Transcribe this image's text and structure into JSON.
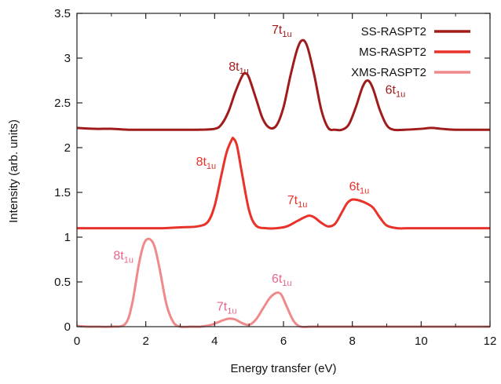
{
  "chart_data": {
    "type": "line",
    "title": "",
    "xlabel": "Energy transfer (eV)",
    "ylabel": "Intensity (arb. units)",
    "xlim": [
      0,
      12
    ],
    "ylim": [
      0,
      3.5
    ],
    "x_ticks": [
      "0",
      "2",
      "4",
      "6",
      "8",
      "10",
      "12"
    ],
    "y_ticks": [
      "0",
      "0.5",
      "1",
      "1.5",
      "2",
      "2.5",
      "3",
      "3.5"
    ],
    "grid": false,
    "legend_position": "top-right",
    "series": [
      {
        "name": "SS-RASPT2",
        "color": "#a01c1c",
        "x": [
          0,
          0.5,
          1,
          1.5,
          2,
          2.5,
          3,
          3.5,
          4,
          4.2,
          4.4,
          4.6,
          4.8,
          4.9,
          5.0,
          5.2,
          5.4,
          5.6,
          5.8,
          6.0,
          6.2,
          6.4,
          6.55,
          6.7,
          6.9,
          7.1,
          7.3,
          7.5,
          7.7,
          7.9,
          8.1,
          8.3,
          8.45,
          8.6,
          8.8,
          9.0,
          9.2,
          9.5,
          10,
          10.3,
          10.6,
          11,
          11.5,
          12
        ],
        "values": [
          2.22,
          2.21,
          2.21,
          2.2,
          2.2,
          2.2,
          2.2,
          2.2,
          2.21,
          2.26,
          2.4,
          2.62,
          2.8,
          2.83,
          2.78,
          2.55,
          2.32,
          2.22,
          2.25,
          2.45,
          2.8,
          3.1,
          3.2,
          3.12,
          2.8,
          2.42,
          2.22,
          2.2,
          2.2,
          2.26,
          2.45,
          2.68,
          2.75,
          2.66,
          2.42,
          2.25,
          2.2,
          2.2,
          2.21,
          2.22,
          2.21,
          2.2,
          2.2,
          2.2
        ]
      },
      {
        "name": "MS-RASPT2",
        "color": "#e8322a",
        "x": [
          0,
          0.5,
          1,
          1.5,
          2,
          2.5,
          3,
          3.5,
          3.8,
          4.0,
          4.2,
          4.35,
          4.5,
          4.55,
          4.65,
          4.8,
          5.0,
          5.2,
          5.5,
          5.8,
          6.1,
          6.4,
          6.6,
          6.75,
          6.9,
          7.1,
          7.3,
          7.5,
          7.7,
          7.85,
          8.0,
          8.2,
          8.4,
          8.6,
          8.8,
          9.0,
          9.3,
          9.6,
          10,
          10.5,
          11,
          11.5,
          12
        ],
        "values": [
          1.1,
          1.1,
          1.1,
          1.1,
          1.1,
          1.1,
          1.11,
          1.12,
          1.17,
          1.35,
          1.7,
          1.95,
          2.09,
          2.1,
          2.02,
          1.7,
          1.3,
          1.13,
          1.1,
          1.1,
          1.12,
          1.18,
          1.22,
          1.24,
          1.22,
          1.16,
          1.12,
          1.15,
          1.28,
          1.38,
          1.42,
          1.41,
          1.38,
          1.33,
          1.22,
          1.13,
          1.1,
          1.1,
          1.1,
          1.1,
          1.1,
          1.1,
          1.1
        ]
      },
      {
        "name": "XMS-RASPT2",
        "color": "#f08a8a",
        "x": [
          0,
          0.3,
          0.6,
          1.0,
          1.4,
          1.6,
          1.8,
          1.95,
          2.1,
          2.25,
          2.4,
          2.6,
          2.8,
          3.0,
          3.3,
          3.6,
          3.9,
          4.1,
          4.3,
          4.45,
          4.6,
          4.8,
          5.0,
          5.2,
          5.4,
          5.6,
          5.75,
          5.85,
          5.95,
          6.1,
          6.3,
          6.5,
          6.8,
          7.2,
          8,
          9,
          10,
          11,
          12
        ],
        "values": [
          0.01,
          0.0,
          0.0,
          0.0,
          0.03,
          0.25,
          0.7,
          0.93,
          0.98,
          0.9,
          0.65,
          0.25,
          0.05,
          0.0,
          0.0,
          0.0,
          0.02,
          0.05,
          0.08,
          0.09,
          0.08,
          0.04,
          0.02,
          0.08,
          0.2,
          0.32,
          0.37,
          0.38,
          0.35,
          0.22,
          0.06,
          0.0,
          0.0,
          0.0,
          0.0,
          0.0,
          0.0,
          0.0,
          0.0
        ]
      }
    ],
    "annotations": [
      {
        "base": "8t",
        "sub": "1u",
        "x": 4.7,
        "y": 2.86,
        "color": "#a01c1c"
      },
      {
        "base": "7t",
        "sub": "1u",
        "x": 5.95,
        "y": 3.27,
        "color": "#a01c1c"
      },
      {
        "base": "6t",
        "sub": "1u",
        "x": 9.25,
        "y": 2.6,
        "color": "#a01c1c"
      },
      {
        "base": "8t",
        "sub": "1u",
        "x": 3.75,
        "y": 1.8,
        "color": "#e8322a"
      },
      {
        "base": "7t",
        "sub": "1u",
        "x": 6.4,
        "y": 1.37,
        "color": "#e8322a"
      },
      {
        "base": "6t",
        "sub": "1u",
        "x": 8.2,
        "y": 1.52,
        "color": "#e8322a"
      },
      {
        "base": "8t",
        "sub": "1u",
        "x": 1.35,
        "y": 0.75,
        "color": "#e8678a"
      },
      {
        "base": "7t",
        "sub": "1u",
        "x": 4.35,
        "y": 0.18,
        "color": "#e8678a"
      },
      {
        "base": "6t",
        "sub": "1u",
        "x": 5.95,
        "y": 0.49,
        "color": "#e8678a"
      }
    ]
  }
}
